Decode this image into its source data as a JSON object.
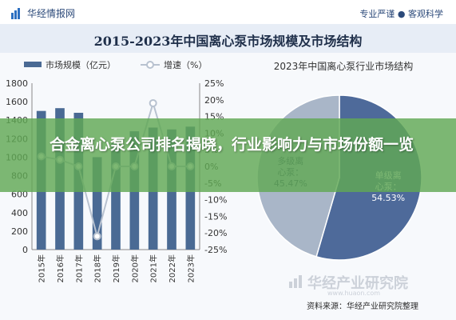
{
  "header": {
    "logo_text": "华经情报网",
    "tagline": "专业严谨 ● 客观科学"
  },
  "main_title": "2015-2023年中国离心泵市场规模及市场结构",
  "overlay_text": "合金离心泵公司排名揭晓，行业影响力与市场份额一览",
  "watermark": {
    "text": "华经产业研究院",
    "url": "www.huaon.com"
  },
  "source": "资料来源：华经产业研究院整理",
  "colors": {
    "bar": "#4a6a94",
    "growth_line": "#b8c2d0",
    "pie_main": "#4e6a9a",
    "pie_other": "#a9b6c8",
    "overlay": "#60a854"
  },
  "chart_data": [
    {
      "type": "bar",
      "title": "",
      "categories": [
        "2015年",
        "2016年",
        "2017年",
        "2018年",
        "2019年",
        "2020年",
        "2021年",
        "2022年",
        "2023年"
      ],
      "series": [
        {
          "name": "市场规模（亿元）",
          "type": "bar",
          "axis": "left",
          "values": [
            1500,
            1530,
            1480,
            1000,
            1150,
            1280,
            1320,
            1300,
            1330
          ]
        },
        {
          "name": "增速（%）",
          "type": "line",
          "axis": "right",
          "values": [
            3,
            2,
            0,
            -21,
            0,
            0,
            19,
            0,
            0
          ]
        }
      ],
      "y_left": {
        "ylim": [
          0,
          1800
        ],
        "ticks": [
          "0",
          "200",
          "400",
          "600",
          "800",
          "1000",
          "1200",
          "1400",
          "1600",
          "1800"
        ]
      },
      "y_right": {
        "ylim": [
          -25,
          25
        ],
        "ticks": [
          "-25%",
          "-20%",
          "-15%",
          "-10%",
          "-5%",
          "0%",
          "5%",
          "10%",
          "15%",
          "20%",
          "25%"
        ]
      },
      "grid": false,
      "legend": "top"
    },
    {
      "type": "pie",
      "title": "2023年中国离心泵行业市场结构",
      "slices": [
        {
          "label": "单级离心泵",
          "value": 54.53,
          "value_label": "54.53%"
        },
        {
          "label": "多级离心泵",
          "value": 45.47,
          "value_label": "45.47%"
        }
      ]
    }
  ]
}
